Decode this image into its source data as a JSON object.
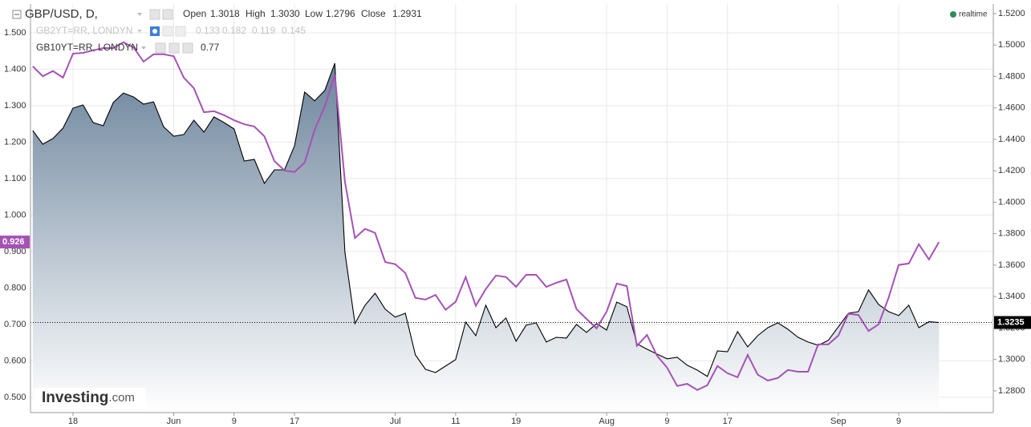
{
  "header": {
    "open_label": "Open",
    "open": "1.3018",
    "high_label": "High",
    "high": "1.3030",
    "low_label": "Low",
    "low": "1.2796",
    "close_label": "Close",
    "close": "1.2931",
    "realtime": "realtime"
  },
  "hidden_series": {
    "name": "GB2YT=RR, LONDYN",
    "values_text": [
      "0.133",
      "0.182",
      "0.119",
      "0.145"
    ]
  },
  "watermark": {
    "brand": "Investing",
    "suffix": ".com"
  },
  "chart_data": {
    "type": "line",
    "categories": [
      null,
      null,
      null,
      null,
      "18",
      null,
      null,
      null,
      null,
      null,
      null,
      null,
      null,
      null,
      "Jun",
      null,
      null,
      null,
      null,
      null,
      "9",
      null,
      null,
      null,
      null,
      null,
      "17",
      null,
      null,
      null,
      null,
      null,
      null,
      null,
      null,
      null,
      "Jul",
      null,
      null,
      null,
      null,
      null,
      "11",
      null,
      null,
      null,
      null,
      null,
      "19",
      null,
      null,
      null,
      null,
      null,
      null,
      null,
      null,
      "Aug",
      null,
      null,
      null,
      null,
      null,
      "9",
      null,
      null,
      null,
      null,
      null,
      "17",
      null,
      null,
      null,
      null,
      null,
      null,
      null,
      null,
      null,
      null,
      "Sep",
      null,
      null,
      null,
      null,
      null,
      "9",
      null,
      null,
      null,
      null
    ],
    "series": [
      {
        "name": "GBP/USD, D,",
        "type": "area",
        "axis": "y2",
        "color": "#000000",
        "fill": "#6c849c",
        "values": [
          1.4456,
          1.4369,
          1.4405,
          1.4471,
          1.4599,
          1.4619,
          1.4507,
          1.4487,
          1.4634,
          1.4695,
          1.467,
          1.4624,
          1.4639,
          1.4481,
          1.442,
          1.4431,
          1.4522,
          1.4446,
          1.4543,
          1.4507,
          1.4466,
          1.4262,
          1.4273,
          1.412,
          1.4206,
          1.4206,
          1.4359,
          1.4701,
          1.4645,
          1.4711,
          1.4884,
          1.3681,
          1.3228,
          1.3345,
          1.3421,
          1.332,
          1.3269,
          1.3294,
          1.3029,
          1.2937,
          1.2917,
          1.2958,
          1.2999,
          1.3238,
          1.3151,
          1.3345,
          1.3202,
          1.3264,
          1.3116,
          1.3218,
          1.3233,
          1.3111,
          1.3141,
          1.3136,
          1.3223,
          1.3172,
          1.3228,
          1.3187,
          1.3365,
          1.3335,
          1.31,
          1.3065,
          1.3034,
          1.3004,
          1.3014,
          1.2963,
          1.2932,
          1.2892,
          1.3055,
          1.3049,
          1.3177,
          1.308,
          1.3151,
          1.3202,
          1.3233,
          1.3192,
          1.3141,
          1.3111,
          1.309,
          1.3121,
          1.3207,
          1.3294,
          1.3304,
          1.3442,
          1.335,
          1.3304,
          1.3279,
          1.3345,
          1.3202,
          1.324,
          1.3235
        ]
      },
      {
        "name": "GB10YT=RR, LONDYN",
        "type": "line",
        "color": "#a552b5",
        "legend_value": "0.77",
        "values": [
          1.408,
          1.381,
          1.395,
          1.377,
          1.443,
          1.445,
          1.452,
          1.458,
          1.458,
          1.474,
          1.46,
          1.421,
          1.441,
          1.441,
          1.436,
          1.377,
          1.348,
          1.282,
          1.285,
          1.274,
          1.26,
          1.249,
          1.243,
          1.216,
          1.148,
          1.122,
          1.118,
          1.144,
          1.234,
          1.298,
          1.385,
          1.091,
          0.937,
          0.962,
          0.951,
          0.871,
          0.865,
          0.841,
          0.773,
          0.768,
          0.781,
          0.74,
          0.762,
          0.83,
          0.751,
          0.797,
          0.834,
          0.83,
          0.803,
          0.836,
          0.836,
          0.803,
          0.814,
          0.823,
          0.742,
          0.715,
          0.689,
          0.735,
          0.812,
          0.805,
          0.641,
          0.671,
          0.614,
          0.581,
          0.531,
          0.537,
          0.52,
          0.533,
          0.586,
          0.566,
          0.555,
          0.616,
          0.562,
          0.546,
          0.553,
          0.575,
          0.57,
          0.57,
          0.645,
          0.645,
          0.669,
          0.729,
          0.726,
          0.682,
          0.7,
          0.773,
          0.863,
          0.867,
          0.92,
          0.878,
          0.926
        ]
      }
    ],
    "ylim": [
      0.458,
      1.579
    ],
    "yticks": [
      {
        "value": 0.5,
        "label": "0.500"
      },
      {
        "value": 0.6,
        "label": "0.600"
      },
      {
        "value": 0.7,
        "label": "0.700"
      },
      {
        "value": 0.8,
        "label": "0.800"
      },
      {
        "value": 0.9,
        "label": "0.900"
      },
      {
        "value": 1.0,
        "label": "1.000"
      },
      {
        "value": 1.1,
        "label": "1.100"
      },
      {
        "value": 1.2,
        "label": "1.200"
      },
      {
        "value": 1.3,
        "label": "1.300"
      },
      {
        "value": 1.4,
        "label": "1.400"
      },
      {
        "value": 1.5,
        "label": "1.500"
      }
    ],
    "y2lim": [
      1.2662,
      1.5261
    ],
    "y2ticks": [
      {
        "value": 1.28,
        "label": "1.2800"
      },
      {
        "value": 1.3,
        "label": "1.3000"
      },
      {
        "value": 1.32,
        "label": "1.3200"
      },
      {
        "value": 1.34,
        "label": "1.3400"
      },
      {
        "value": 1.36,
        "label": "1.3600"
      },
      {
        "value": 1.38,
        "label": "1.3800"
      },
      {
        "value": 1.4,
        "label": "1.4000"
      },
      {
        "value": 1.42,
        "label": "1.4200"
      },
      {
        "value": 1.44,
        "label": "1.4400"
      },
      {
        "value": 1.46,
        "label": "1.4600"
      },
      {
        "value": 1.48,
        "label": "1.4800"
      },
      {
        "value": 1.5,
        "label": "1.5000"
      },
      {
        "value": 1.52,
        "label": "1.5200"
      }
    ],
    "grid": true
  }
}
